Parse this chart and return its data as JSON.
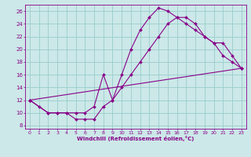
{
  "xlabel": "Windchill (Refroidissement éolien,°C)",
  "bg_color": "#cce8e8",
  "grid_color": "#99cccc",
  "line_color": "#880088",
  "xlim": [
    -0.5,
    23.5
  ],
  "ylim": [
    7.5,
    27
  ],
  "xticks": [
    0,
    1,
    2,
    3,
    4,
    5,
    6,
    7,
    8,
    9,
    10,
    11,
    12,
    13,
    14,
    15,
    16,
    17,
    18,
    19,
    20,
    21,
    22,
    23
  ],
  "yticks": [
    8,
    10,
    12,
    14,
    16,
    18,
    20,
    22,
    24,
    26
  ],
  "curve1_x": [
    0,
    1,
    2,
    3,
    4,
    5,
    6,
    7,
    8,
    9,
    10,
    11,
    12,
    13,
    14,
    15,
    16,
    17,
    18,
    19,
    20,
    21,
    22,
    23
  ],
  "curve1_y": [
    12,
    11,
    10,
    10,
    10,
    9,
    9,
    9,
    11,
    12,
    16,
    20,
    23,
    25,
    26.5,
    26,
    25,
    24,
    23,
    22,
    21,
    19,
    18,
    17
  ],
  "curve2_x": [
    0,
    2,
    3,
    4,
    5,
    6,
    7,
    8,
    9,
    10,
    11,
    12,
    13,
    14,
    15,
    16,
    17,
    18,
    19,
    20,
    21,
    22,
    23
  ],
  "curve2_y": [
    12,
    10,
    10,
    10,
    10,
    10,
    11,
    16,
    12,
    14,
    16,
    18,
    20,
    22,
    24,
    25,
    25,
    24,
    22,
    21,
    21,
    19,
    17
  ],
  "curve3_x": [
    0,
    23
  ],
  "curve3_y": [
    12,
    17
  ]
}
